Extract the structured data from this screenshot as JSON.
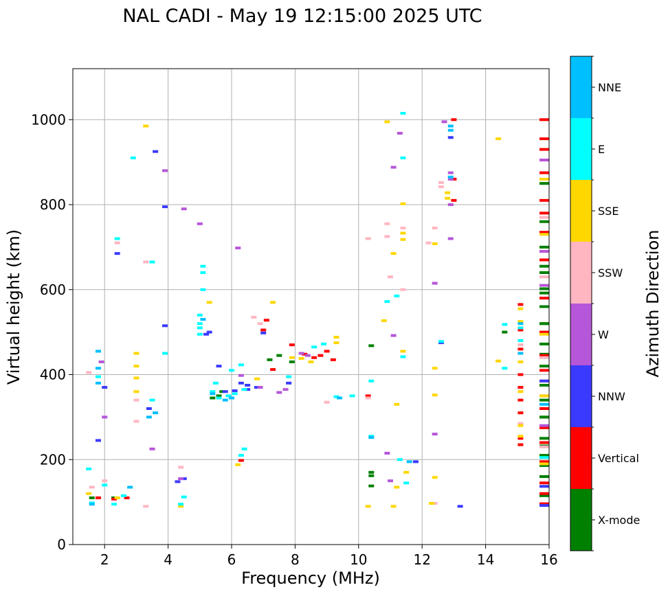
{
  "chart_data": {
    "type": "scatter",
    "title": "NAL CADI - May 19 12:15:00 2025 UTC",
    "xlabel": "Frequency (MHz)",
    "ylabel": "Virtual height (km)",
    "xlim": [
      1,
      16
    ],
    "ylim": [
      0,
      1120
    ],
    "xticks": [
      "2",
      "4",
      "6",
      "8",
      "10",
      "12",
      "14",
      "16"
    ],
    "yticks": [
      "0",
      "200",
      "400",
      "600",
      "800",
      "1000"
    ],
    "grid": true,
    "colorbar": {
      "label": "Azimuth Direction",
      "categories": [
        {
          "name": "X-mode",
          "color": "#008000"
        },
        {
          "name": "Vertical",
          "color": "#ff0000"
        },
        {
          "name": "NNW",
          "color": "#3a3aff"
        },
        {
          "name": "W",
          "color": "#b656d8"
        },
        {
          "name": "SSW",
          "color": "#ffb6c1"
        },
        {
          "name": "SSE",
          "color": "#ffd700"
        },
        {
          "name": "E",
          "color": "#00ffff"
        },
        {
          "name": "NNE",
          "color": "#00bfff"
        }
      ]
    },
    "series": [
      {
        "name": "X-mode",
        "points": [
          [
            10.4,
            170
          ],
          [
            10.4,
            162
          ],
          [
            10.4,
            138
          ],
          [
            10.4,
            468
          ],
          [
            14.6,
            500
          ],
          [
            16,
            655
          ],
          [
            16,
            640
          ],
          [
            16,
            602
          ],
          [
            16,
            560
          ],
          [
            16,
            520
          ],
          [
            16,
            472
          ],
          [
            16,
            420
          ],
          [
            16,
            375
          ],
          [
            16,
            340
          ],
          [
            16,
            300
          ],
          [
            16,
            250
          ],
          [
            16,
            210
          ],
          [
            16,
            160
          ],
          [
            16,
            115
          ],
          [
            15.9,
            186
          ],
          [
            15.9,
            232
          ],
          [
            15.9,
            300
          ],
          [
            15.9,
            448
          ],
          [
            15.9,
            520
          ],
          [
            15.9,
            592
          ],
          [
            15.9,
            700
          ],
          [
            15.9,
            760
          ],
          [
            15.9,
            850
          ],
          [
            5.6,
            350
          ],
          [
            5.7,
            360
          ],
          [
            5.4,
            345
          ],
          [
            7.5,
            445
          ],
          [
            7.9,
            430
          ],
          [
            1.6,
            110
          ],
          [
            2.3,
            110
          ],
          [
            7.2,
            435
          ]
        ]
      },
      {
        "name": "Vertical",
        "points": [
          [
            15.9,
            1000
          ],
          [
            15.9,
            955
          ],
          [
            15.9,
            930
          ],
          [
            15.9,
            905
          ],
          [
            15.9,
            875
          ],
          [
            15.9,
            810
          ],
          [
            15.9,
            780
          ],
          [
            15.9,
            735
          ],
          [
            15.9,
            670
          ],
          [
            15.9,
            580
          ],
          [
            15.9,
            500
          ],
          [
            15.9,
            445
          ],
          [
            15.9,
            410
          ],
          [
            15.9,
            385
          ],
          [
            15.9,
            350
          ],
          [
            15.9,
            320
          ],
          [
            15.9,
            275
          ],
          [
            15.9,
            240
          ],
          [
            15.9,
            195
          ],
          [
            15.9,
            145
          ],
          [
            15.9,
            120
          ],
          [
            15.9,
            96
          ],
          [
            15.9,
            905
          ],
          [
            15.1,
            565
          ],
          [
            15.1,
            505
          ],
          [
            15.1,
            460
          ],
          [
            15.1,
            400
          ],
          [
            15.1,
            370
          ],
          [
            15.1,
            340
          ],
          [
            15.1,
            310
          ],
          [
            15.1,
            250
          ],
          [
            15.1,
            235
          ],
          [
            13,
            1000
          ],
          [
            13,
            860
          ],
          [
            13,
            810
          ],
          [
            8.6,
            440
          ],
          [
            8.8,
            445
          ],
          [
            9.0,
            455
          ],
          [
            9.2,
            435
          ],
          [
            8.3,
            448
          ],
          [
            7.9,
            470
          ],
          [
            7.3,
            412
          ],
          [
            6.3,
            198
          ],
          [
            1.8,
            110
          ],
          [
            2.3,
            107
          ],
          [
            2.7,
            110
          ],
          [
            10.3,
            350
          ],
          [
            7.0,
            505
          ],
          [
            7.1,
            528
          ]
        ]
      },
      {
        "name": "NNW",
        "points": [
          [
            12.9,
            958
          ],
          [
            13.2,
            90
          ],
          [
            12.6,
            475
          ],
          [
            5.6,
            420
          ],
          [
            5.2,
            495
          ],
          [
            5.3,
            500
          ],
          [
            4.5,
            155
          ],
          [
            4.3,
            148
          ],
          [
            2.4,
            685
          ],
          [
            3.6,
            925
          ],
          [
            3.9,
            795
          ],
          [
            1.8,
            245
          ],
          [
            2.0,
            370
          ],
          [
            3.9,
            515
          ],
          [
            6.3,
            380
          ],
          [
            6.5,
            375
          ],
          [
            6.8,
            370
          ],
          [
            7.8,
            380
          ],
          [
            11.8,
            195
          ],
          [
            16,
            137
          ],
          [
            16,
            92
          ],
          [
            15.9,
            385
          ],
          [
            5.8,
            360
          ],
          [
            7.0,
            498
          ],
          [
            6.1,
            362
          ],
          [
            6.5,
            365
          ],
          [
            3.4,
            320
          ]
        ]
      },
      {
        "name": "W",
        "points": [
          [
            12.9,
            875
          ],
          [
            12.9,
            860
          ],
          [
            12.9,
            800
          ],
          [
            12.9,
            720
          ],
          [
            12.7,
            995
          ],
          [
            12.4,
            615
          ],
          [
            12.4,
            260
          ],
          [
            11.1,
            888
          ],
          [
            11.3,
            968
          ],
          [
            11.1,
            492
          ],
          [
            10.9,
            215
          ],
          [
            11.0,
            150
          ],
          [
            6.2,
            698
          ],
          [
            4.5,
            790
          ],
          [
            3.9,
            880
          ],
          [
            5.0,
            755
          ],
          [
            7.5,
            358
          ],
          [
            7.7,
            365
          ],
          [
            6.9,
            370
          ],
          [
            6.3,
            398
          ],
          [
            4.4,
            155
          ],
          [
            2.0,
            300
          ],
          [
            16,
            905
          ],
          [
            16,
            690
          ],
          [
            16,
            610
          ],
          [
            16,
            280
          ],
          [
            8.2,
            450
          ],
          [
            8.4,
            445
          ],
          [
            3.5,
            225
          ],
          [
            1.9,
            430
          ]
        ]
      },
      {
        "name": "SSW",
        "points": [
          [
            12.6,
            852
          ],
          [
            12.6,
            842
          ],
          [
            12.4,
            745
          ],
          [
            11.0,
            630
          ],
          [
            10.9,
            755
          ],
          [
            10.9,
            725
          ],
          [
            11.4,
            745
          ],
          [
            11.4,
            600
          ],
          [
            10.3,
            720
          ],
          [
            10.3,
            345
          ],
          [
            9.0,
            335
          ],
          [
            6.7,
            535
          ],
          [
            6.9,
            520
          ],
          [
            3.3,
            665
          ],
          [
            2.4,
            710
          ],
          [
            2.0,
            150
          ],
          [
            3.0,
            340
          ],
          [
            3.0,
            290
          ],
          [
            3.3,
            90
          ],
          [
            1.5,
            405
          ],
          [
            1.6,
            135
          ],
          [
            15.1,
            470
          ],
          [
            15.1,
            285
          ],
          [
            16,
            770
          ],
          [
            16,
            630
          ],
          [
            16,
            440
          ],
          [
            16,
            230
          ],
          [
            12.4,
            97
          ],
          [
            12.2,
            710
          ],
          [
            4.4,
            182
          ]
        ]
      },
      {
        "name": "SSE",
        "points": [
          [
            12.8,
            828
          ],
          [
            12.8,
            815
          ],
          [
            12.4,
            708
          ],
          [
            12.4,
            415
          ],
          [
            12.4,
            352
          ],
          [
            12.4,
            158
          ],
          [
            12.3,
            97
          ],
          [
            14.4,
            955
          ],
          [
            14.4,
            432
          ],
          [
            11.4,
            802
          ],
          [
            11.4,
            733
          ],
          [
            11.4,
            718
          ],
          [
            11.4,
            455
          ],
          [
            11.5,
            170
          ],
          [
            11.2,
            330
          ],
          [
            11.2,
            135
          ],
          [
            11.1,
            685
          ],
          [
            10.8,
            527
          ],
          [
            10.3,
            90
          ],
          [
            10.9,
            995
          ],
          [
            11.1,
            90
          ],
          [
            9.3,
            488
          ],
          [
            9.3,
            475
          ],
          [
            8.5,
            430
          ],
          [
            8.2,
            438
          ],
          [
            7.9,
            440
          ],
          [
            5.3,
            570
          ],
          [
            3.0,
            450
          ],
          [
            3.0,
            420
          ],
          [
            3.0,
            392
          ],
          [
            3.0,
            360
          ],
          [
            3.3,
            985
          ],
          [
            4.4,
            90
          ],
          [
            2.4,
            110
          ],
          [
            1.5,
            120
          ],
          [
            15.1,
            555
          ],
          [
            15.1,
            525
          ],
          [
            15.1,
            430
          ],
          [
            15.1,
            360
          ],
          [
            15.1,
            280
          ],
          [
            15.1,
            255
          ],
          [
            16,
            860
          ],
          [
            16,
            730
          ],
          [
            16,
            495
          ],
          [
            16,
            350
          ],
          [
            16,
            190
          ],
          [
            6.2,
            188
          ],
          [
            7.3,
            570
          ],
          [
            6.8,
            390
          ]
        ]
      },
      {
        "name": "E",
        "points": [
          [
            11.4,
            1015
          ],
          [
            11.4,
            910
          ],
          [
            11.4,
            442
          ],
          [
            11.2,
            585
          ],
          [
            10.9,
            572
          ],
          [
            10.4,
            385
          ],
          [
            10.4,
            255
          ],
          [
            11.5,
            145
          ],
          [
            11.3,
            200
          ],
          [
            12.6,
            478
          ],
          [
            14.6,
            518
          ],
          [
            14.6,
            415
          ],
          [
            9.3,
            348
          ],
          [
            9.8,
            350
          ],
          [
            6.4,
            225
          ],
          [
            6.3,
            210
          ],
          [
            5.0,
            540
          ],
          [
            5.0,
            520
          ],
          [
            5.0,
            510
          ],
          [
            5.0,
            495
          ],
          [
            5.1,
            655
          ],
          [
            5.1,
            640
          ],
          [
            5.1,
            600
          ],
          [
            5.4,
            360
          ],
          [
            5.6,
            345
          ],
          [
            5.9,
            350
          ],
          [
            6.1,
            355
          ],
          [
            6.4,
            365
          ],
          [
            5.5,
            380
          ],
          [
            6.0,
            410
          ],
          [
            6.3,
            423
          ],
          [
            2.4,
            720
          ],
          [
            2.9,
            910
          ],
          [
            3.5,
            340
          ],
          [
            3.9,
            450
          ],
          [
            1.5,
            178
          ],
          [
            1.6,
            98
          ],
          [
            2.3,
            95
          ],
          [
            2.6,
            115
          ],
          [
            3.5,
            665
          ],
          [
            4.5,
            112
          ],
          [
            4.4,
            95
          ],
          [
            16,
            205
          ],
          [
            15.1,
            510
          ],
          [
            15.1,
            480
          ],
          [
            7.8,
            395
          ],
          [
            8.6,
            465
          ],
          [
            8.9,
            472
          ],
          [
            1.8,
            395
          ],
          [
            2.0,
            140
          ]
        ]
      },
      {
        "name": "NNE",
        "points": [
          [
            12.9,
            985
          ],
          [
            12.9,
            975
          ],
          [
            12.9,
            865
          ],
          [
            11.6,
            195
          ],
          [
            10.4,
            252
          ],
          [
            9.4,
            345
          ],
          [
            5.1,
            530
          ],
          [
            5.4,
            355
          ],
          [
            5.8,
            340
          ],
          [
            6.0,
            345
          ],
          [
            2.8,
            135
          ],
          [
            1.8,
            380
          ],
          [
            1.8,
            455
          ],
          [
            1.8,
            415
          ],
          [
            3.4,
            300
          ],
          [
            3.6,
            310
          ],
          [
            1.6,
            95
          ],
          [
            15.1,
            520
          ],
          [
            15.1,
            450
          ],
          [
            16,
            330
          ]
        ]
      }
    ]
  }
}
